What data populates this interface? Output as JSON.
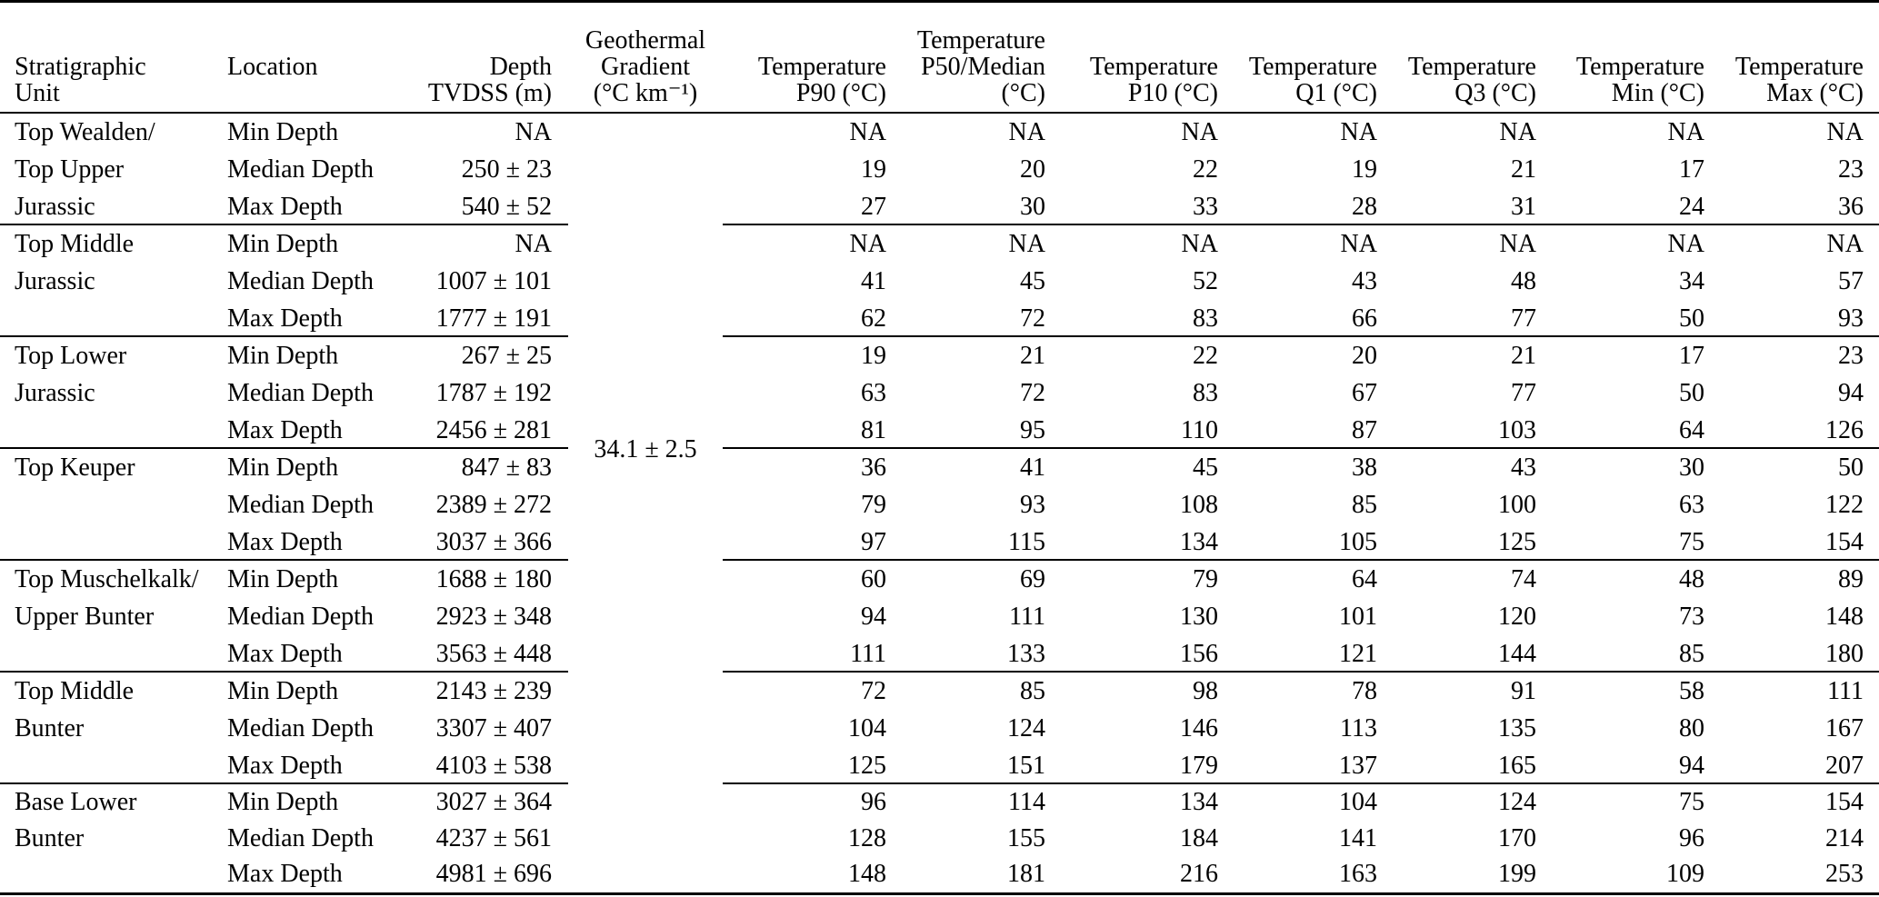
{
  "table": {
    "headers": {
      "strat_unit": [
        "Stratigraphic",
        "Unit"
      ],
      "location": [
        "Location"
      ],
      "depth": [
        "Depth",
        "TVDSS (m)"
      ],
      "gradient": [
        "Geothermal",
        "Gradient",
        "(°C km⁻¹)"
      ],
      "temp_p90": [
        "Temperature",
        "P90 (°C)"
      ],
      "temp_p50": [
        "Temperature",
        "P50/Median",
        "(°C)"
      ],
      "temp_p10": [
        "Temperature",
        "P10 (°C)"
      ],
      "temp_q1": [
        "Temperature",
        "Q1 (°C)"
      ],
      "temp_q3": [
        "Temperature",
        "Q3 (°C)"
      ],
      "temp_min": [
        "Temperature",
        "Min (°C)"
      ],
      "temp_max": [
        "Temperature",
        "Max (°C)"
      ]
    },
    "gradient_value": "34.1 ± 2.5",
    "groups": [
      {
        "unit_lines": [
          "Top Wealden/",
          "Top Upper",
          "Jurassic"
        ],
        "rows": [
          {
            "location": "Min Depth",
            "depth": "NA",
            "temps": [
              "NA",
              "NA",
              "NA",
              "NA",
              "NA",
              "NA",
              "NA"
            ]
          },
          {
            "location": "Median Depth",
            "depth": "250 ± 23",
            "temps": [
              "19",
              "20",
              "22",
              "19",
              "21",
              "17",
              "23"
            ]
          },
          {
            "location": "Max Depth",
            "depth": "540 ± 52",
            "temps": [
              "27",
              "30",
              "33",
              "28",
              "31",
              "24",
              "36"
            ]
          }
        ]
      },
      {
        "unit_lines": [
          "Top Middle",
          "Jurassic"
        ],
        "rows": [
          {
            "location": "Min Depth",
            "depth": "NA",
            "temps": [
              "NA",
              "NA",
              "NA",
              "NA",
              "NA",
              "NA",
              "NA"
            ]
          },
          {
            "location": "Median Depth",
            "depth": "1007 ± 101",
            "temps": [
              "41",
              "45",
              "52",
              "43",
              "48",
              "34",
              "57"
            ]
          },
          {
            "location": "Max Depth",
            "depth": "1777 ± 191",
            "temps": [
              "62",
              "72",
              "83",
              "66",
              "77",
              "50",
              "93"
            ]
          }
        ]
      },
      {
        "unit_lines": [
          "Top Lower",
          "Jurassic"
        ],
        "rows": [
          {
            "location": "Min Depth",
            "depth": "267 ± 25",
            "temps": [
              "19",
              "21",
              "22",
              "20",
              "21",
              "17",
              "23"
            ]
          },
          {
            "location": "Median Depth",
            "depth": "1787 ± 192",
            "temps": [
              "63",
              "72",
              "83",
              "67",
              "77",
              "50",
              "94"
            ]
          },
          {
            "location": "Max Depth",
            "depth": "2456 ± 281",
            "temps": [
              "81",
              "95",
              "110",
              "87",
              "103",
              "64",
              "126"
            ]
          }
        ]
      },
      {
        "unit_lines": [
          "Top Keuper"
        ],
        "rows": [
          {
            "location": "Min Depth",
            "depth": "847 ± 83",
            "temps": [
              "36",
              "41",
              "45",
              "38",
              "43",
              "30",
              "50"
            ]
          },
          {
            "location": "Median Depth",
            "depth": "2389 ± 272",
            "temps": [
              "79",
              "93",
              "108",
              "85",
              "100",
              "63",
              "122"
            ]
          },
          {
            "location": "Max Depth",
            "depth": "3037 ± 366",
            "temps": [
              "97",
              "115",
              "134",
              "105",
              "125",
              "75",
              "154"
            ]
          }
        ]
      },
      {
        "unit_lines": [
          "Top Muschelkalk/",
          "Upper Bunter"
        ],
        "rows": [
          {
            "location": "Min Depth",
            "depth": "1688 ± 180",
            "temps": [
              "60",
              "69",
              "79",
              "64",
              "74",
              "48",
              "89"
            ]
          },
          {
            "location": "Median Depth",
            "depth": "2923 ± 348",
            "temps": [
              "94",
              "111",
              "130",
              "101",
              "120",
              "73",
              "148"
            ]
          },
          {
            "location": "Max Depth",
            "depth": "3563 ± 448",
            "temps": [
              "111",
              "133",
              "156",
              "121",
              "144",
              "85",
              "180"
            ]
          }
        ]
      },
      {
        "unit_lines": [
          "Top Middle",
          "Bunter"
        ],
        "rows": [
          {
            "location": "Min Depth",
            "depth": "2143 ± 239",
            "temps": [
              "72",
              "85",
              "98",
              "78",
              "91",
              "58",
              "111"
            ]
          },
          {
            "location": "Median Depth",
            "depth": "3307 ± 407",
            "temps": [
              "104",
              "124",
              "146",
              "113",
              "135",
              "80",
              "167"
            ]
          },
          {
            "location": "Max Depth",
            "depth": "4103 ± 538",
            "temps": [
              "125",
              "151",
              "179",
              "137",
              "165",
              "94",
              "207"
            ]
          }
        ]
      },
      {
        "unit_lines": [
          "Base Lower",
          "Bunter"
        ],
        "rows": [
          {
            "location": "Min Depth",
            "depth": "3027 ± 364",
            "temps": [
              "96",
              "114",
              "134",
              "104",
              "124",
              "75",
              "154"
            ]
          },
          {
            "location": "Median Depth",
            "depth": "4237 ± 561",
            "temps": [
              "128",
              "155",
              "184",
              "141",
              "170",
              "96",
              "214"
            ]
          },
          {
            "location": "Max Depth",
            "depth": "4981 ± 696",
            "temps": [
              "148",
              "181",
              "216",
              "163",
              "199",
              "109",
              "253"
            ]
          }
        ]
      }
    ]
  }
}
